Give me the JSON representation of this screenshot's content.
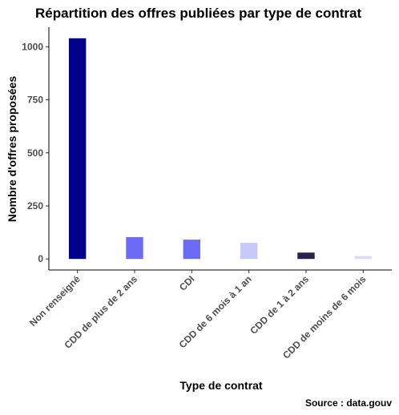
{
  "chart_data": {
    "type": "bar",
    "title": "Répartition des offres publiées par type de contrat",
    "xlabel": "Type de contrat",
    "ylabel": "Nombre d'offres proposées",
    "caption": "Source : data.gouv",
    "categories": [
      "Non renseigné",
      "CDD de plus de 2 ans",
      "CDI",
      "CDD de 6 mois à 1 an",
      "CDD de 1 à 2 ans",
      "CDD de moins de 6 mois"
    ],
    "values": [
      1040,
      103,
      91,
      76,
      30,
      14
    ],
    "colors": [
      "#00008b",
      "#6b6bf7",
      "#6b6bf7",
      "#c8c8fa",
      "#23234d",
      "#dcdcfa"
    ],
    "yticks": [
      0,
      250,
      500,
      750,
      1000
    ],
    "ylim": [
      -52,
      1092
    ],
    "grid": false,
    "legend": "none"
  }
}
